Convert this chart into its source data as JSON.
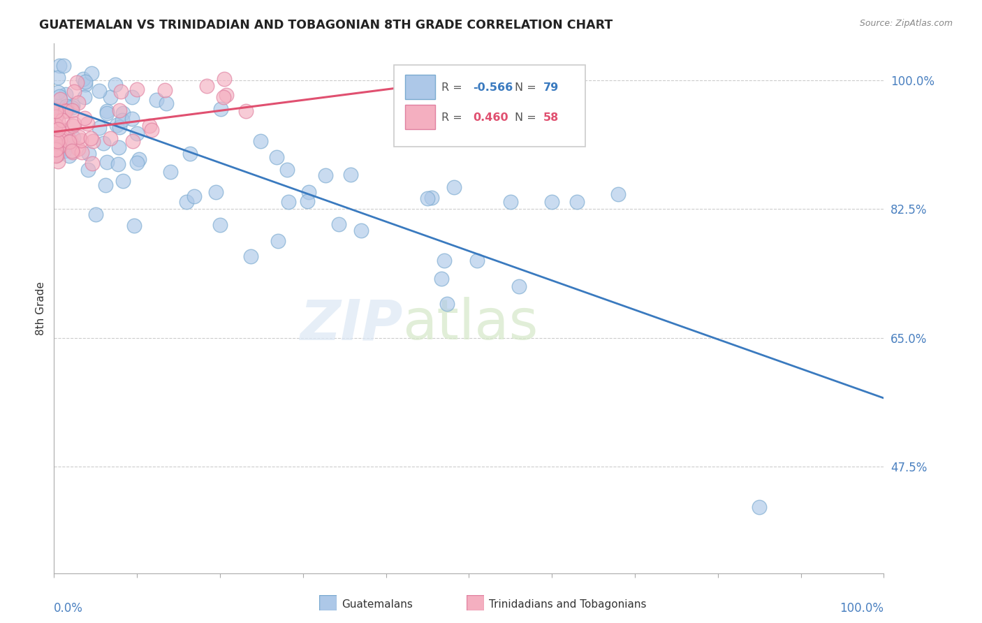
{
  "title": "GUATEMALAN VS TRINIDADIAN AND TOBAGONIAN 8TH GRADE CORRELATION CHART",
  "source": "Source: ZipAtlas.com",
  "ylabel": "8th Grade",
  "ytick_vals": [
    0.475,
    0.65,
    0.825,
    1.0
  ],
  "ytick_labels": [
    "47.5%",
    "65.0%",
    "82.5%",
    "100.0%"
  ],
  "xmin": 0.0,
  "xmax": 1.0,
  "ymin": 0.33,
  "ymax": 1.05,
  "blue_R_text": "-0.566",
  "blue_N_text": "79",
  "pink_R_text": "0.460",
  "pink_N_text": "58",
  "blue_color": "#adc8e8",
  "pink_color": "#f4afc0",
  "blue_edge": "#7aaad0",
  "pink_edge": "#e080a0",
  "blue_line_color": "#3a7abf",
  "pink_line_color": "#e05070",
  "legend_label_blue": "Guatemalans",
  "legend_label_pink": "Trinidadians and Tobagonians",
  "blue_line_x0": 0.0,
  "blue_line_x1": 1.0,
  "blue_line_y0": 0.968,
  "blue_line_y1": 0.568,
  "pink_line_x0": 0.0,
  "pink_line_x1": 0.52,
  "pink_line_y0": 0.93,
  "pink_line_y1": 1.005
}
